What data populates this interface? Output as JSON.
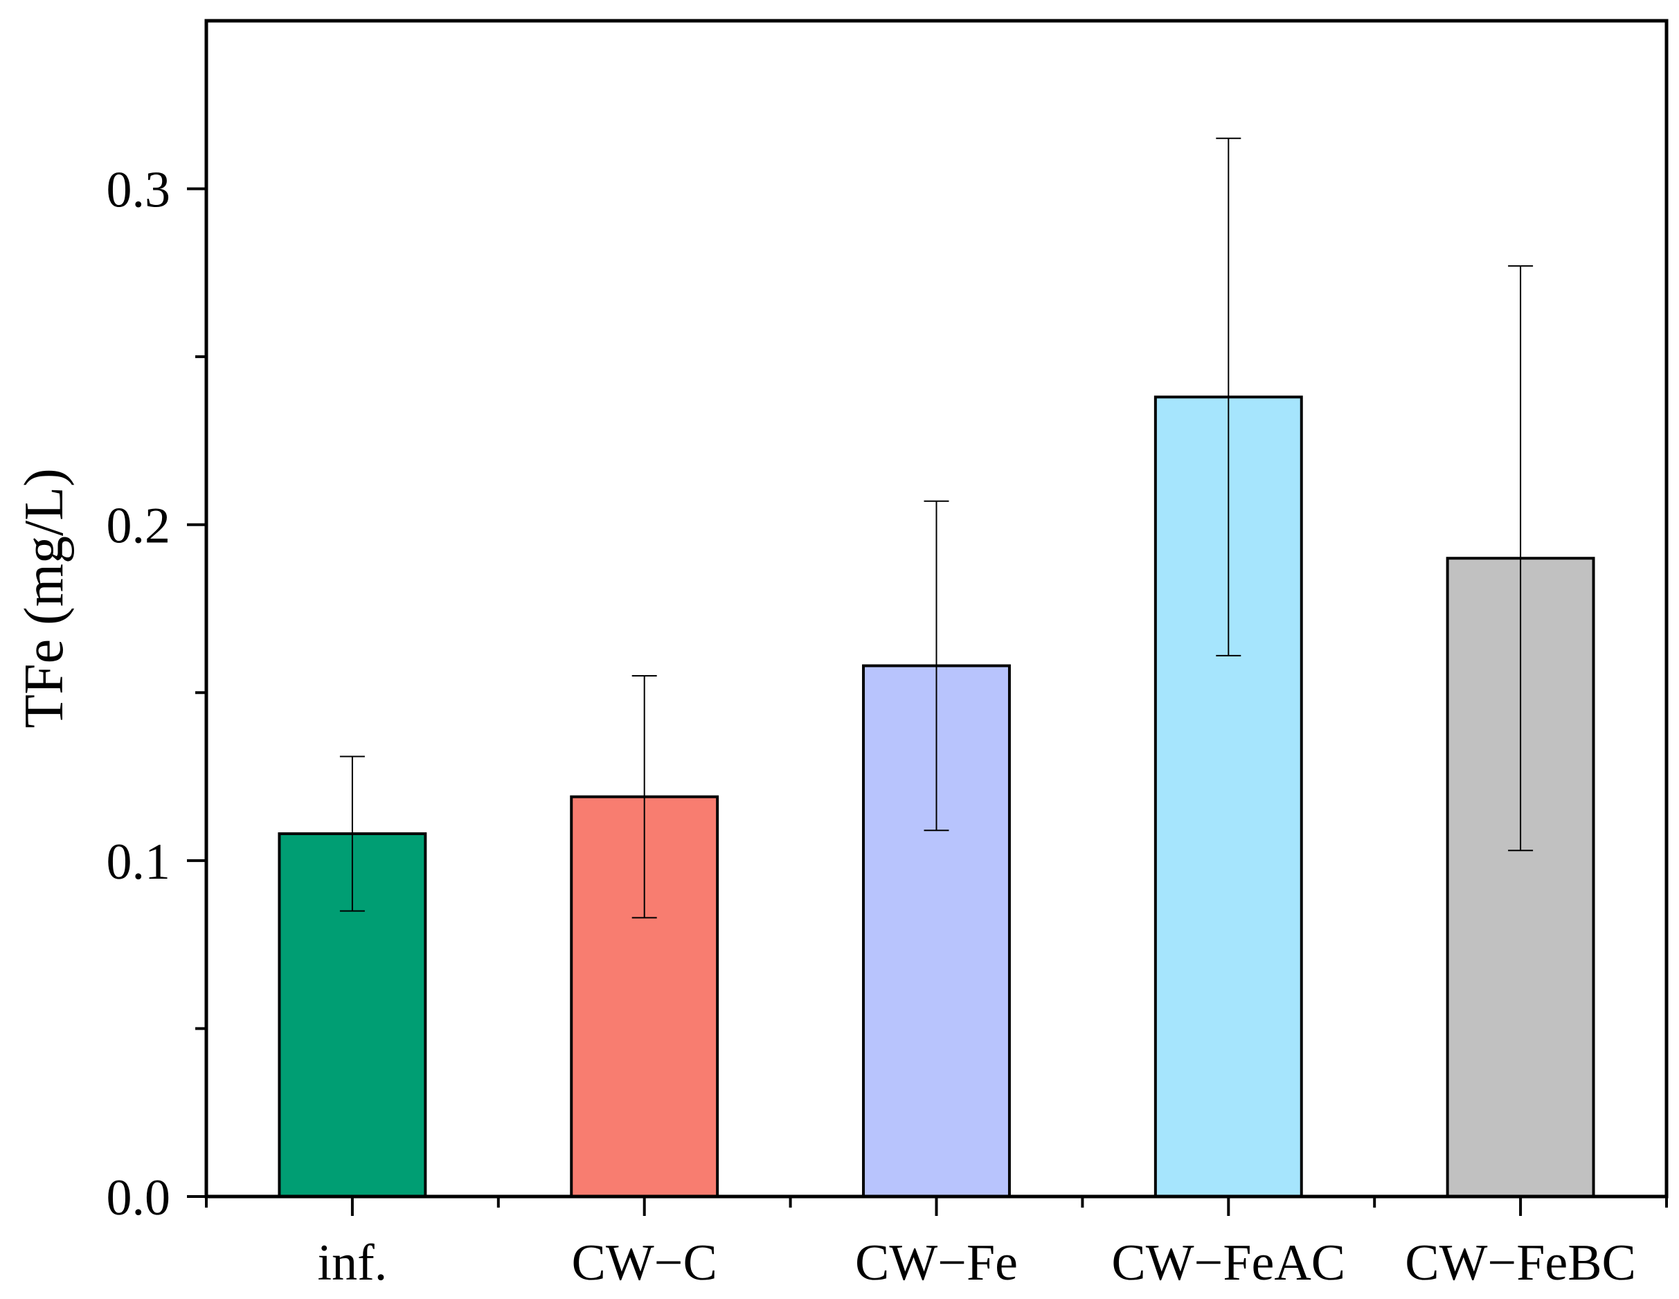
{
  "chart_data": {
    "type": "bar",
    "title": "",
    "xlabel": "",
    "ylabel": "TFe (mg/L)",
    "categories": [
      "inf.",
      "CW−C",
      "CW−Fe",
      "CW−FeAC",
      "CW−FeBC"
    ],
    "values": [
      0.108,
      0.119,
      0.158,
      0.238,
      0.19
    ],
    "errors": [
      0.023,
      0.036,
      0.049,
      0.077,
      0.087
    ],
    "colors": [
      "#009e73",
      "#f87d70",
      "#b8c4fd",
      "#a6e5fd",
      "#c1c1c1"
    ],
    "ylim": [
      0,
      0.35
    ],
    "yticks": [
      0.0,
      0.1,
      0.2,
      0.3
    ],
    "ytick_labels": [
      "0.0",
      "0.1",
      "0.2",
      "0.3"
    ],
    "yminor_ticks": [
      0.05,
      0.15,
      0.25
    ],
    "grid": false,
    "legend": "none"
  }
}
